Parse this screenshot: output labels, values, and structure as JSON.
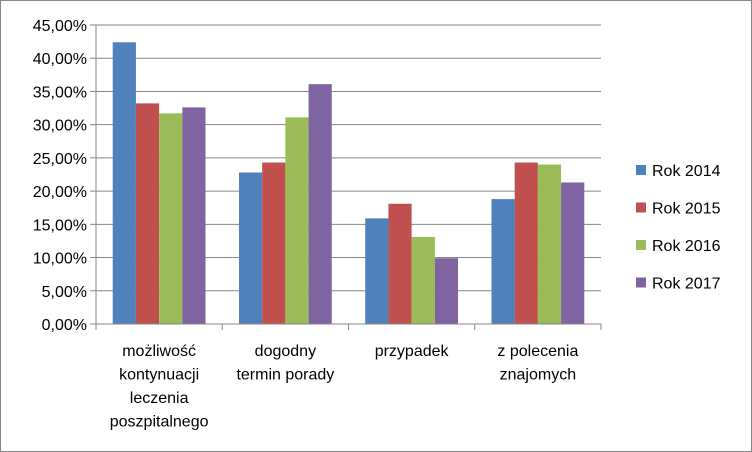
{
  "chart_data": {
    "type": "bar",
    "categories": [
      [
        "możliwość",
        "kontynuacji",
        "leczenia",
        "poszpitalnego"
      ],
      [
        "dogodny",
        "termin porady"
      ],
      [
        "przypadek"
      ],
      [
        "z polecenia",
        "znajomych"
      ]
    ],
    "series": [
      {
        "name": "Rok 2014",
        "color": "#4F81BD",
        "values": [
          42.4,
          22.8,
          15.9,
          18.8
        ]
      },
      {
        "name": "Rok 2015",
        "color": "#C0504D",
        "values": [
          33.2,
          24.3,
          18.1,
          24.3
        ]
      },
      {
        "name": "Rok 2016",
        "color": "#9BBB59",
        "values": [
          31.7,
          31.1,
          13.1,
          24.0
        ]
      },
      {
        "name": "Rok 2017",
        "color": "#8064A2",
        "values": [
          32.6,
          36.1,
          9.9,
          21.3
        ]
      }
    ],
    "ylim": [
      0,
      45
    ],
    "ytick_step": 5,
    "ytick_labels": [
      "0,00%",
      "5,00%",
      "10,00%",
      "15,00%",
      "20,00%",
      "25,00%",
      "30,00%",
      "35,00%",
      "40,00%",
      "45,00%"
    ],
    "grid": true,
    "legend": "right",
    "title": "",
    "xlabel": "",
    "ylabel": ""
  }
}
